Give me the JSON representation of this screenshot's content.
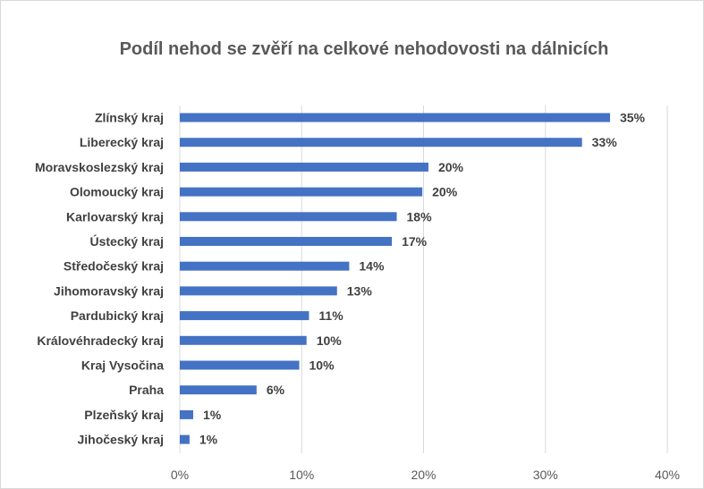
{
  "chart_data": {
    "type": "bar",
    "orientation": "horizontal",
    "title": "Podíl nehod se zvěří na celkové nehodovosti na dálnicích",
    "categories": [
      "Zlínský kraj",
      "Liberecký kraj",
      "Moravskoslezský kraj",
      "Olomoucký kraj",
      "Karlovarský kraj",
      "Ústecký kraj",
      "Středočeský kraj",
      "Jihomoravský kraj",
      "Pardubický kraj",
      "Královéhradecký kraj",
      "Kraj Vysočina",
      "Praha",
      "Plzeňský kraj",
      "Jihočeský kraj"
    ],
    "values": [
      35.3,
      33.0,
      20.4,
      19.9,
      17.8,
      17.4,
      13.9,
      12.9,
      10.6,
      10.4,
      9.8,
      6.3,
      1.1,
      0.8
    ],
    "data_labels": [
      "35%",
      "33%",
      "20%",
      "20%",
      "18%",
      "17%",
      "14%",
      "13%",
      "11%",
      "10%",
      "10%",
      "6%",
      "1%",
      "1%"
    ],
    "x_ticks": [
      0,
      10,
      20,
      30,
      40
    ],
    "x_tick_labels": [
      "0%",
      "10%",
      "20%",
      "30%",
      "40%"
    ],
    "xlim": [
      0,
      40
    ],
    "grid": true,
    "legend": "none",
    "bar_color": "#4472c4",
    "grid_color": "#d9d9d9"
  }
}
